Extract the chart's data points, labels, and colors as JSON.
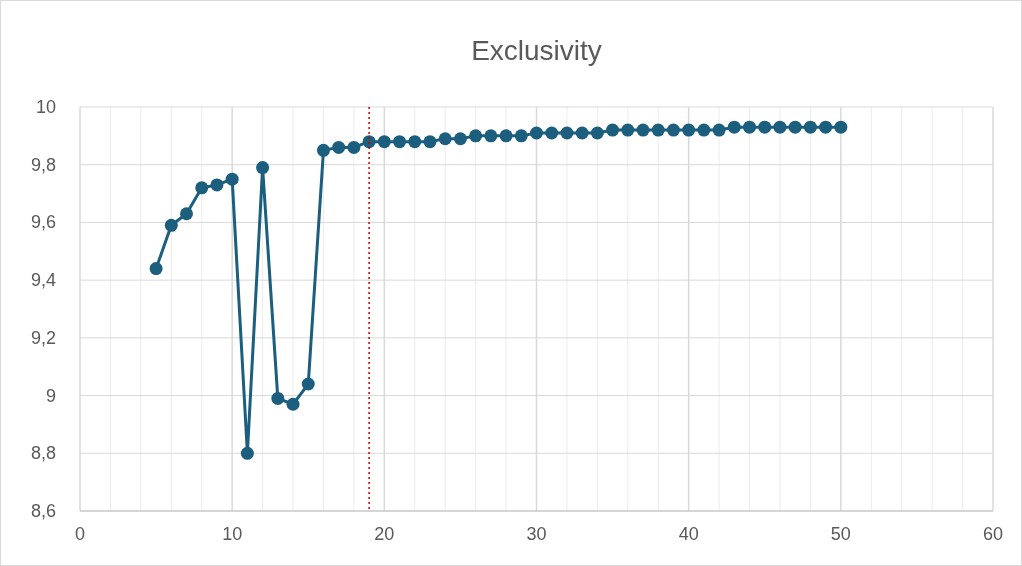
{
  "chart_data": {
    "type": "line",
    "title": "Exclusivity",
    "x": [
      5,
      6,
      7,
      8,
      9,
      10,
      11,
      12,
      13,
      14,
      15,
      16,
      17,
      18,
      19,
      20,
      21,
      22,
      23,
      24,
      25,
      26,
      27,
      28,
      29,
      30,
      31,
      32,
      33,
      34,
      35,
      36,
      37,
      38,
      39,
      40,
      41,
      42,
      43,
      44,
      45,
      46,
      47,
      48,
      49,
      50
    ],
    "series": [
      {
        "color": "#1b5e7e",
        "values": [
          9.44,
          9.59,
          9.63,
          9.72,
          9.73,
          9.75,
          8.8,
          9.79,
          8.99,
          8.97,
          9.04,
          9.85,
          9.86,
          9.86,
          9.88,
          9.88,
          9.88,
          9.88,
          9.88,
          9.89,
          9.89,
          9.9,
          9.9,
          9.9,
          9.9,
          9.91,
          9.91,
          9.91,
          9.91,
          9.91,
          9.92,
          9.92,
          9.92,
          9.92,
          9.92,
          9.92,
          9.92,
          9.92,
          9.93,
          9.93,
          9.93,
          9.93,
          9.93,
          9.93,
          9.93,
          9.93
        ]
      }
    ],
    "xlim": [
      0,
      60
    ],
    "xticks": [
      0,
      {
        "value": 2,
        "label": null
      },
      {
        "value": 4,
        "label": null
      },
      {
        "value": 6,
        "label": null
      },
      {
        "value": 8,
        "label": null
      },
      10,
      {
        "value": 12,
        "label": null
      },
      {
        "value": 14,
        "label": null
      },
      {
        "value": 16,
        "label": null
      },
      {
        "value": 18,
        "label": null
      },
      20,
      {
        "value": 22,
        "label": null
      },
      {
        "value": 24,
        "label": null
      },
      {
        "value": 26,
        "label": null
      },
      {
        "value": 28,
        "label": null
      },
      30,
      {
        "value": 32,
        "label": null
      },
      {
        "value": 34,
        "label": null
      },
      {
        "value": 36,
        "label": null
      },
      {
        "value": 38,
        "label": null
      },
      40,
      {
        "value": 42,
        "label": null
      },
      {
        "value": 44,
        "label": null
      },
      {
        "value": 46,
        "label": null
      },
      {
        "value": 48,
        "label": null
      },
      50,
      {
        "value": 52,
        "label": null
      },
      {
        "value": 54,
        "label": null
      },
      {
        "value": 56,
        "label": null
      },
      {
        "value": 58,
        "label": null
      },
      60
    ],
    "ylim": [
      8.6,
      10
    ],
    "yticks": [
      {
        "value": 8.6,
        "label": "8,6"
      },
      {
        "value": 8.8,
        "label": "8,8"
      },
      9,
      {
        "value": 9.2,
        "label": "9,2"
      },
      {
        "value": 9.4,
        "label": "9,4"
      },
      {
        "value": 9.6,
        "label": "9,6"
      },
      {
        "value": 9.8,
        "label": "9,8"
      },
      10
    ],
    "grid": true,
    "marker": "circle",
    "line_style": "solid",
    "ref_lines": [
      {
        "axis": "x",
        "value": 19,
        "color": "#c00000",
        "line_style": "dotted"
      }
    ]
  }
}
